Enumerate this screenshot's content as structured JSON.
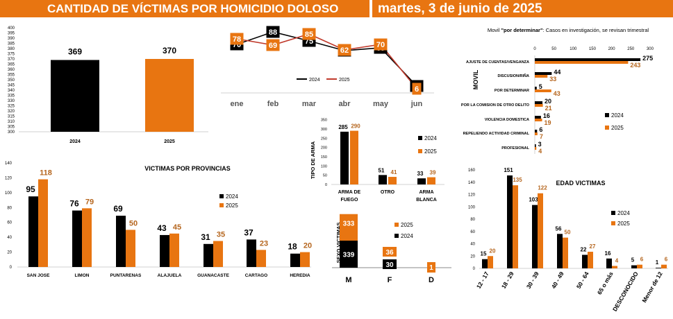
{
  "header": {
    "title": "CANTIDAD DE VÍCTIMAS POR HOMICIDIO DOLOSO",
    "date": "martes, 3 de junio de 2025"
  },
  "colors": {
    "y2024": "#000000",
    "y2025": "#e87511",
    "banner": "#e87511",
    "line2025": "#c0392b"
  },
  "chart_data": [
    {
      "id": "totales",
      "type": "bar",
      "categories": [
        "2024",
        "2025"
      ],
      "values": [
        369,
        370
      ],
      "ylim": [
        300,
        400
      ],
      "yticks": [
        "300",
        "305",
        "310",
        "315",
        "320",
        "325",
        "330",
        "335",
        "340",
        "345",
        "350",
        "355",
        "360",
        "365",
        "370",
        "375",
        "380",
        "385",
        "390",
        "395",
        "400"
      ]
    },
    {
      "id": "mensual",
      "type": "line",
      "categories": [
        "ene",
        "feb",
        "mar",
        "abr",
        "may",
        "jun"
      ],
      "series": [
        {
          "name": "2024",
          "values": [
            70,
            88,
            75,
            61,
            65,
            10
          ]
        },
        {
          "name": "2025",
          "values": [
            78,
            69,
            85,
            62,
            70,
            6
          ]
        }
      ],
      "ylim": [
        0,
        100
      ]
    },
    {
      "id": "provincias",
      "type": "bar",
      "title": "VICTIMAS POR PROVINCIAS",
      "categories": [
        "SAN JOSE",
        "LIMON",
        "PUNTARENAS",
        "ALAJUELA",
        "GUANACASTE",
        "CARTAGO",
        "HEREDIA"
      ],
      "series": [
        {
          "name": "2024",
          "values": [
            95,
            76,
            69,
            43,
            31,
            37,
            18
          ]
        },
        {
          "name": "2025",
          "values": [
            118,
            79,
            50,
            45,
            35,
            23,
            20
          ]
        }
      ],
      "ylim": [
        0,
        140
      ],
      "yticks": [
        "0",
        "20",
        "40",
        "60",
        "80",
        "100",
        "120",
        "140"
      ]
    },
    {
      "id": "arma",
      "type": "bar",
      "ylabel": "TIPO DE ARMA",
      "categories": [
        "ARMA DE FUEGO",
        "OTRO",
        "ARMA BLANCA"
      ],
      "category_lines": [
        [
          "ARMA DE",
          "FUEGO"
        ],
        [
          "OTRO"
        ],
        [
          "ARMA",
          "BLANCA"
        ]
      ],
      "series": [
        {
          "name": "2024",
          "values": [
            285,
            51,
            33
          ]
        },
        {
          "name": "2025",
          "values": [
            290,
            41,
            39
          ]
        }
      ],
      "ylim": [
        0,
        350
      ],
      "yticks": [
        "0",
        "50",
        "100",
        "150",
        "200",
        "250",
        "300",
        "350"
      ]
    },
    {
      "id": "sexo",
      "type": "bar",
      "ylabel": "SEXO VICTIMAS",
      "categories": [
        "M",
        "F",
        "D"
      ],
      "series": [
        {
          "name": "2025",
          "values": [
            333,
            36,
            1
          ]
        },
        {
          "name": "2024",
          "values": [
            339,
            30,
            0
          ]
        }
      ],
      "ylim": [
        0,
        420
      ]
    },
    {
      "id": "movil",
      "type": "bar",
      "orientation": "horizontal",
      "title": "Movil \"por determinar\": Casos en investigación, se revisan trimestral",
      "title_prefix": "Movil ",
      "title_bold": "\"por determinar\"",
      "title_suffix": ": Casos en investigación, se revisan trimestral",
      "ylabel": "MOVIL",
      "categories": [
        "AJUSTE DE CUENTAS/VENGANZA",
        "DISCUSION/RIÑA",
        "POR DETERMINAR",
        "POR LA COMISION DE OTRO DELITO",
        "VIOLENCIA DOMESTICA",
        "REPELIENDO ACTIVIDAD CRIMINAL",
        "PROFESIONAL"
      ],
      "series": [
        {
          "name": "2024",
          "values": [
            275,
            44,
            5,
            20,
            16,
            6,
            3
          ]
        },
        {
          "name": "2025",
          "values": [
            243,
            33,
            43,
            21,
            19,
            7,
            4
          ]
        }
      ],
      "xlim": [
        0,
        300
      ],
      "xticks": [
        "0",
        "50",
        "100",
        "150",
        "200",
        "250",
        "300"
      ]
    },
    {
      "id": "edad",
      "type": "bar",
      "title": "EDAD VICTIMAS",
      "categories": [
        "12 - 17",
        "18 - 29",
        "30 - 39",
        "40 - 49",
        "50 - 64",
        "65 o más",
        "DESCONOCIDO",
        "Menor de 12"
      ],
      "series": [
        {
          "name": "2024",
          "values": [
            15,
            151,
            103,
            56,
            22,
            16,
            5,
            1
          ]
        },
        {
          "name": "2025",
          "values": [
            20,
            135,
            122,
            50,
            27,
            4,
            6,
            6
          ]
        }
      ],
      "ylim": [
        0,
        160
      ],
      "yticks": [
        "0",
        "20",
        "40",
        "60",
        "80",
        "100",
        "120",
        "140",
        "160"
      ]
    }
  ]
}
